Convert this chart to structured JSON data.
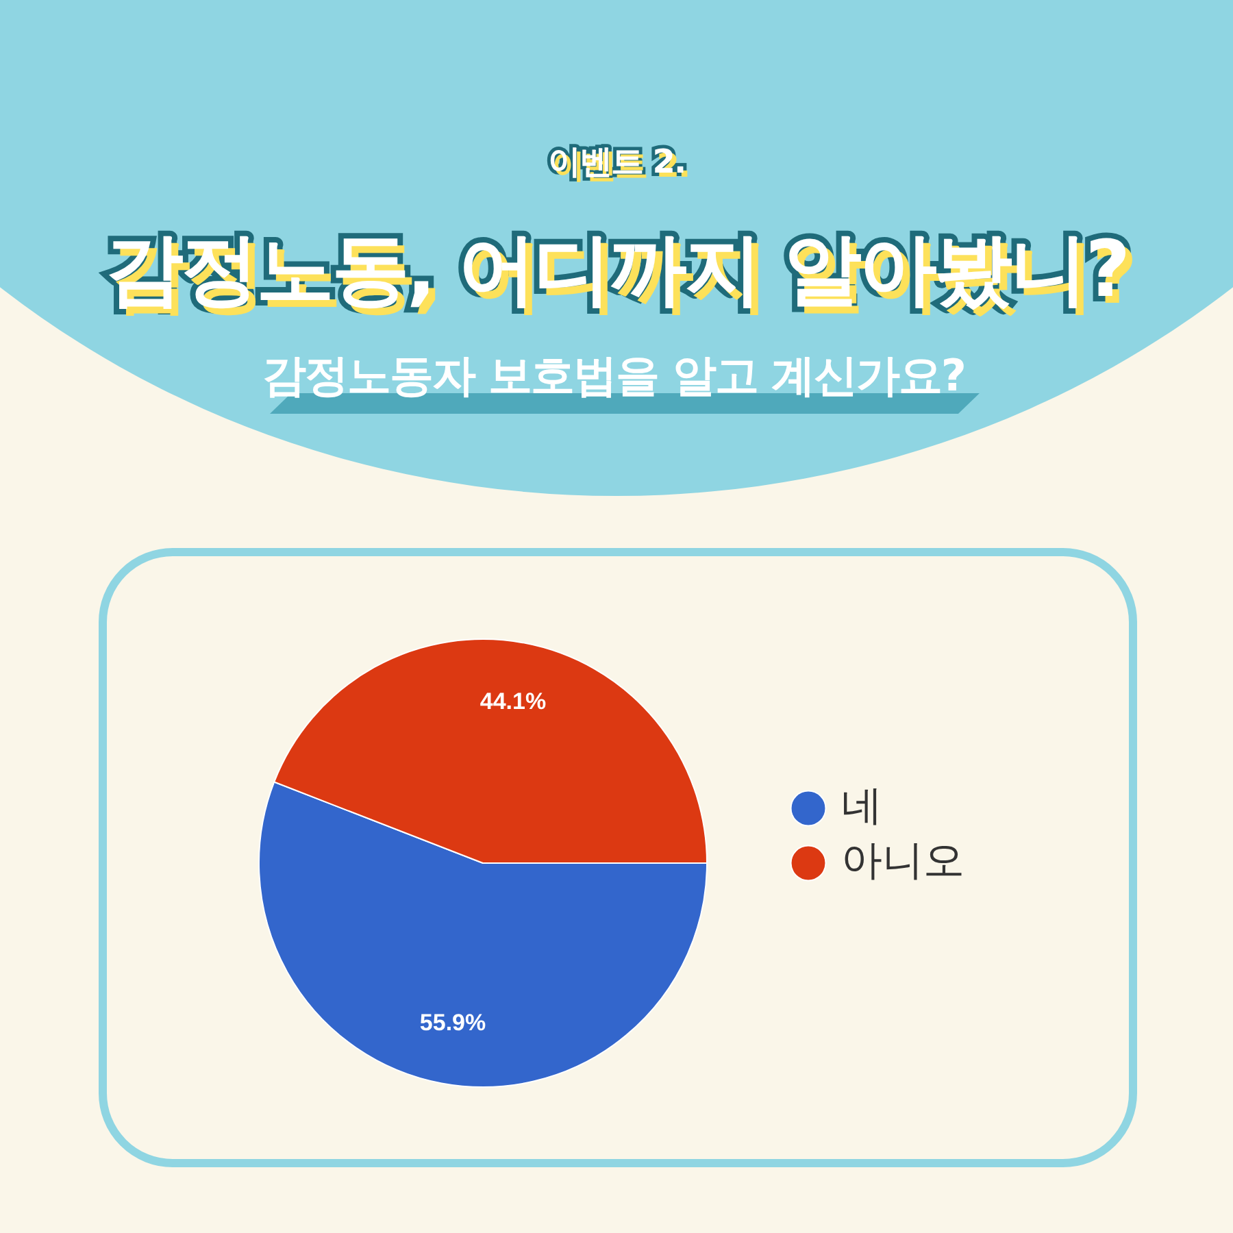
{
  "chart_data": {
    "type": "pie",
    "title": "감정노동, 어디까지 알아봤니?",
    "subtitle": "감정노동자 보호법을 알고 계신가요?",
    "annotations": [
      "이벤트 2."
    ],
    "categories": [
      "네",
      "아니오"
    ],
    "values": [
      55.9,
      44.1
    ],
    "colors": [
      "#3366cc",
      "#dc3912"
    ],
    "value_labels": [
      "55.9%",
      "44.1%"
    ],
    "legend": "right"
  }
}
